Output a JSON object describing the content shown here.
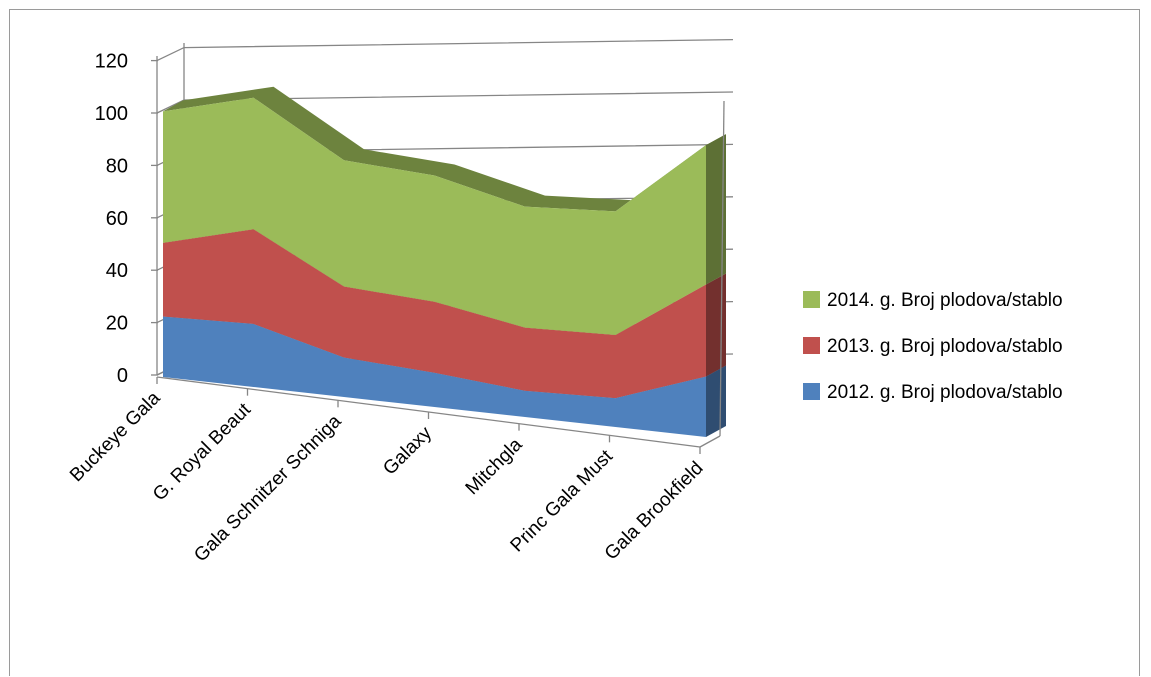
{
  "chart_data": {
    "type": "area",
    "categories": [
      "Buckeye Gala",
      "G. Royal Beaut",
      "Gala Schnitzer Schniga",
      "Galaxy",
      "Mitchgla",
      "Princ Gala Must",
      "Gala Brookfield"
    ],
    "series": [
      {
        "name": "2012. g. Broj plodova/stablo",
        "values": [
          23,
          24,
          15,
          13,
          10,
          11,
          23
        ],
        "color": "#4f81bd"
      },
      {
        "name": "2013. g. Broj plodova/stablo",
        "values": [
          28,
          36,
          27,
          27,
          24,
          24,
          35
        ],
        "color": "#c0504d"
      },
      {
        "name": "2014. g. Broj plodova/stablo",
        "values": [
          50,
          50,
          48,
          48,
          46,
          47,
          53
        ],
        "color": "#9bbb59"
      }
    ],
    "stacked": true,
    "three_d": true,
    "ylim": [
      0,
      120
    ],
    "yticks": [
      "0",
      "20",
      "40",
      "60",
      "80",
      "100",
      "120"
    ],
    "grid": true,
    "legend_position": "right"
  }
}
